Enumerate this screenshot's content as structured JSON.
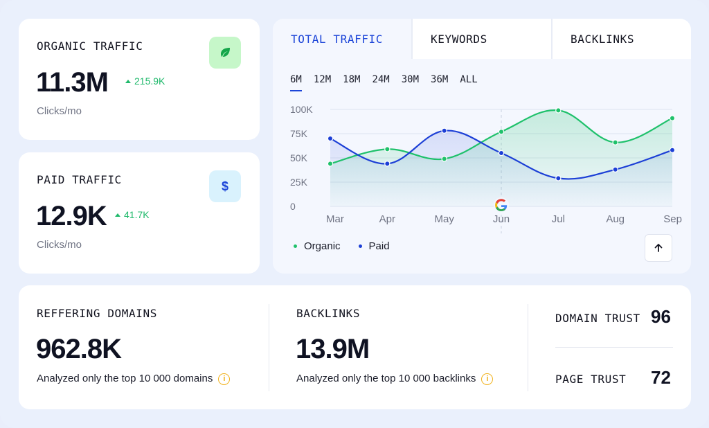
{
  "organic": {
    "title": "ORGANIC TRAFFIC",
    "value": "11.3M",
    "delta": "215.9K",
    "unit": "Clicks/mo",
    "icon": "leaf-icon",
    "icon_bg": "#c6f7c9",
    "icon_color": "#14a64a"
  },
  "paid": {
    "title": "PAID TRAFFIC",
    "value": "12.9K",
    "delta": "41.7K",
    "unit": "Clicks/mo",
    "icon": "dollar-icon",
    "icon_bg": "#d9f2fd",
    "icon_color": "#1c45d8",
    "icon_text": "$"
  },
  "tabs": [
    {
      "label": "TOTAL TRAFFIC",
      "active": true
    },
    {
      "label": "KEYWORDS",
      "active": false
    },
    {
      "label": "BACKLINKS",
      "active": false
    }
  ],
  "ranges": [
    "6M",
    "12M",
    "18M",
    "24M",
    "30M",
    "36M",
    "ALL"
  ],
  "active_range": "6M",
  "chart_data": {
    "type": "line",
    "x": [
      "Mar",
      "Apr",
      "May",
      "Jun",
      "Jul",
      "Aug",
      "Sep"
    ],
    "y_ticks": [
      "100K",
      "75K",
      "50K",
      "25K",
      "0"
    ],
    "ylim": [
      0,
      100000
    ],
    "grid": true,
    "legend_position": "bottom-left",
    "series": [
      {
        "name": "Organic",
        "color": "#1fc16b",
        "values": [
          44000,
          59000,
          49000,
          77000,
          99000,
          66000,
          91000
        ]
      },
      {
        "name": "Paid",
        "color": "#1c3fd6",
        "values": [
          70000,
          44000,
          78000,
          55000,
          29000,
          38000,
          58000
        ]
      }
    ],
    "marker_icon": "google-icon"
  },
  "bottom": {
    "referring": {
      "title": "REFFERING DOMAINS",
      "value": "962.8K",
      "note": "Analyzed only the top 10 000 domains"
    },
    "backlinks": {
      "title": "BACKLINKS",
      "value": "13.9M",
      "note": "Analyzed only the top 10 000 backlinks"
    },
    "domain_trust": {
      "label": "DOMAIN TRUST",
      "value": "96"
    },
    "page_trust": {
      "label": "PAGE TRUST",
      "value": "72"
    },
    "info_glyph": "i"
  },
  "colors": {
    "accent": "#1c45d8",
    "positive": "#1fb96b",
    "info": "#f1b21d"
  }
}
